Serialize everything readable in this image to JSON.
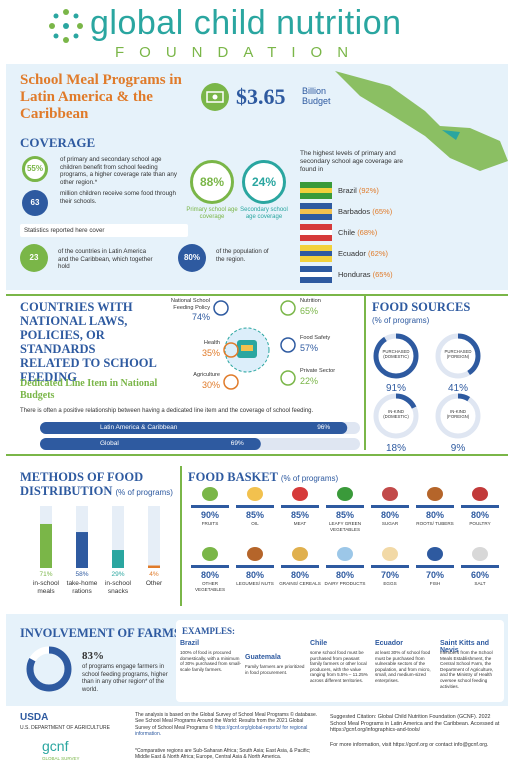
{
  "header": {
    "logo_title": "global child nutrition",
    "logo_subtitle": "FOUNDATION"
  },
  "intro": {
    "title": "School Meal Programs in Latin America & the Caribbean",
    "budget": "$3.65",
    "budget_unit": "Billion Budget"
  },
  "coverage": {
    "heading": "COVERAGE",
    "stats": [
      {
        "value": "55%",
        "text": "of primary and secondary school age children benefit from school feeding programs, a higher coverage rate than any other region.*"
      },
      {
        "value": "63",
        "text": "million children receive some food through their schools."
      }
    ],
    "note": "Statistics reported here cover",
    "cover": [
      {
        "value": "23",
        "text": "of the countries in Latin America and the Caribbean, which together hold"
      },
      {
        "value": "80%",
        "text": "of the population of the region."
      }
    ],
    "rates": [
      {
        "value": "88%",
        "label": "Primary school age coverage"
      },
      {
        "value": "24%",
        "label": "Secondary school age coverage"
      }
    ],
    "highest_heading": "The highest levels of primary and secondary school age coverage are found in",
    "countries": [
      {
        "name": "Brazil",
        "value": "(92%)"
      },
      {
        "name": "Barbados",
        "value": "(65%)"
      },
      {
        "name": "Chile",
        "value": "(68%)"
      },
      {
        "name": "Ecuador",
        "value": "(62%)"
      },
      {
        "name": "Honduras",
        "value": "(65%)"
      }
    ]
  },
  "laws": {
    "heading": "COUNTRIES WITH NATIONAL LAWS, POLICIES, OR STANDARDS RELATED TO SCHOOL FEEDING",
    "items": [
      {
        "label": "National School Feeding Policy",
        "value": "74%"
      },
      {
        "label": "Nutrition",
        "value": "65%"
      },
      {
        "label": "Health",
        "value": "35%"
      },
      {
        "label": "Food Safety",
        "value": "57%"
      },
      {
        "label": "Agriculture",
        "value": "30%"
      },
      {
        "label": "Private Sector",
        "value": "22%"
      }
    ],
    "budget_heading": "Dedicated Line Item in National Budgets",
    "budget_text": "There is often a positive relationship between having a dedicated line item and the coverage of school feeding.",
    "bars": {
      "categories": [
        "Latin America & Caribbean",
        "Global"
      ],
      "values": [
        96,
        69
      ],
      "value_labels": [
        "96%",
        "69%"
      ],
      "xlim": [
        0,
        100
      ]
    }
  },
  "food_sources": {
    "heading": "FOOD SOURCES",
    "subheading": "(% of programs)",
    "categories": [
      "PURCHASED (DOMESTIC)",
      "PURCHASED (FOREIGN)",
      "IN-KIND (DOMESTIC)",
      "IN-KIND (FOREIGN)"
    ],
    "values": [
      91,
      41,
      18,
      9
    ],
    "value_labels": [
      "91%",
      "41%",
      "18%",
      "9%"
    ],
    "range": [
      0,
      100
    ]
  },
  "distribution": {
    "heading": "METHODS OF FOOD DISTRIBUTION",
    "subheading": "(% of programs)",
    "categories": [
      "in-school meals",
      "take-home rations",
      "in-school snacks",
      "Other"
    ],
    "values": [
      71,
      58,
      29,
      4
    ],
    "value_labels": [
      "71%",
      "58%",
      "29%",
      "4%"
    ],
    "colors": [
      "#7ab648",
      "#2e5aa0",
      "#2aa6a0",
      "#e07b2a"
    ],
    "ylim": [
      0,
      100
    ]
  },
  "basket": {
    "heading": "FOOD BASKET",
    "subheading": "(% of programs)",
    "categories": [
      "FRUITS",
      "OIL",
      "MEAT",
      "LEAFY GREEN VEGETABLES",
      "SUGAR",
      "ROOTS/ TUBERS",
      "POULTRY",
      "OTHER VEGETABLES",
      "LEGUMES/ NUTS",
      "GRAINS/ CEREALS",
      "DAIRY PRODUCTS",
      "EGGS",
      "FISH",
      "SALT"
    ],
    "value_labels": [
      "90%",
      "85%",
      "85%",
      "85%",
      "80%",
      "80%",
      "80%",
      "80%",
      "80%",
      "80%",
      "80%",
      "70%",
      "70%",
      "60%"
    ]
  },
  "farms": {
    "heading": "INVOLVEMENT OF FARMS",
    "value": 83,
    "value_label": "83%",
    "range": [
      0,
      100
    ],
    "text": "of programs engage farmers in school feeding programs, higher than in any other region* of the world."
  },
  "examples": {
    "heading": "EXAMPLES:",
    "items": [
      {
        "country": "Brazil",
        "text": "100% of food is procured domestically, with a minimum of 30% purchased from small-scale family farmers."
      },
      {
        "country": "Guatemala",
        "text": "Family farmers are prioritized in food procurement."
      },
      {
        "country": "Chile",
        "text": "some school food must be purchased from peasant family farmers or other local producers, with the value ranging from 5.5% – 11.25% across different territories."
      },
      {
        "country": "Ecuador",
        "text": "at least 30% of school food must be purchased from vulnerable sectors of the population, and from micro, small, and medium-sized enterprises."
      },
      {
        "country": "Saint Kitts and Nevis",
        "text": "members from the School Meals Establishment, the Central School Farm, the Department of Agriculture, and the Ministry of Health oversee school feeding activities."
      }
    ]
  },
  "footer": {
    "usda": "U.S. DEPARTMENT OF AGRICULTURE",
    "gcnf": "gcnf",
    "gcnf_sub": "GLOBAL SURVEY",
    "analysis": "The analysis is based on the Global Survey of School Meal Programs © database. See School Meal Programs Around the World: Results from the 2021 Global Survey of School Meal Programs ©",
    "link": "https://gcnf.org/global-reports/ for regional information.",
    "note": "*Comparative regions are Sub-Saharan Africa; South Asia; East Asia, & Pacific; Middle East & North Africa; Europe, Central Asia & North America.",
    "citation": "Suggested Citation: Global Child Nutrition Foundation (GCNF). 2022 School Meal Programs in Latin America and the Caribbean. Accessed at https://gcnf.org/infographics-and-tools/",
    "more": "For more information, visit https://gcnf.org or contact info@gcnf.org."
  }
}
